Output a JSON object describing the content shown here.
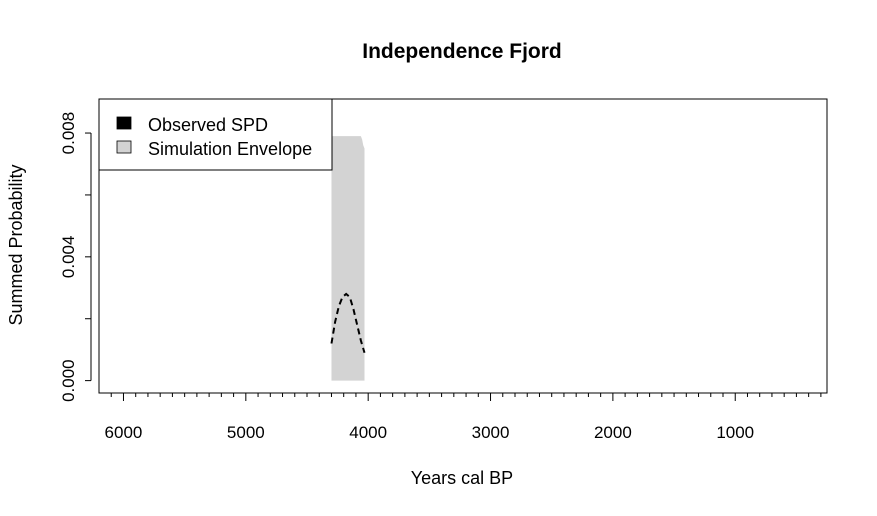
{
  "chart_data": {
    "type": "area",
    "title": "Independence Fjord",
    "xlabel": "Years cal BP",
    "ylabel": "Summed Probability",
    "x_reversed": true,
    "xlim": [
      6200,
      250
    ],
    "ylim": [
      -0.0004,
      0.0091
    ],
    "x_ticks": [
      6000,
      5000,
      4000,
      3000,
      2000,
      1000
    ],
    "x_minor_step": 100,
    "y_ticks": [
      0.0,
      0.002,
      0.004,
      0.006,
      0.008
    ],
    "y_tick_labels": [
      "0.000",
      "",
      "0.004",
      "",
      "0.008"
    ],
    "legend": {
      "position": "top-left",
      "items": [
        {
          "label": "Observed SPD",
          "color": "#000000"
        },
        {
          "label": "Simulation Envelope",
          "color": "#d3d3d3"
        }
      ]
    },
    "envelope": {
      "color": "#d3d3d3",
      "x": [
        4300,
        4290,
        4275,
        4250,
        4200,
        4150,
        4100,
        4075,
        4060,
        4050,
        4040,
        4030
      ],
      "lower": [
        0,
        0,
        0,
        0,
        0,
        0,
        0,
        0,
        0,
        0,
        0,
        0
      ],
      "upper": [
        0.0078,
        0.0079,
        0.0079,
        0.0079,
        0.0079,
        0.0079,
        0.0079,
        0.0079,
        0.0079,
        0.0078,
        0.0076,
        0.0075
      ]
    },
    "series": [
      {
        "name": "Observed SPD",
        "style": "dashed",
        "color": "#000000",
        "x": [
          4300,
          4270,
          4240,
          4210,
          4180,
          4150,
          4120,
          4090,
          4060,
          4030
        ],
        "y": [
          0.0012,
          0.0019,
          0.0024,
          0.0027,
          0.0028,
          0.0027,
          0.0023,
          0.0018,
          0.0013,
          0.0009
        ]
      }
    ]
  }
}
